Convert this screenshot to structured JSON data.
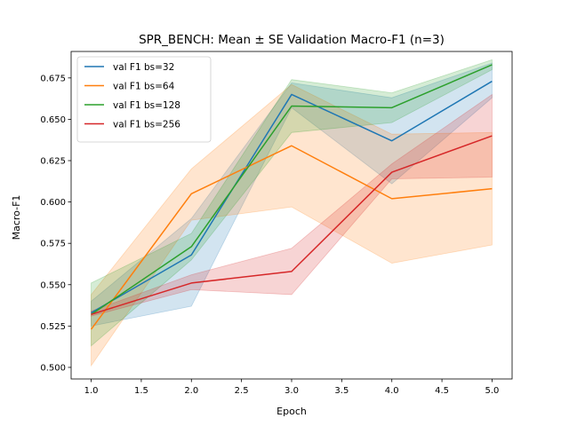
{
  "chart_data": {
    "type": "line",
    "title": "SPR_BENCH: Mean ± SE Validation Macro-F1 (n=3)",
    "xlabel": "Epoch",
    "ylabel": "Macro-F1",
    "x": [
      1,
      2,
      3,
      4,
      5
    ],
    "xlim": [
      0.8,
      5.2
    ],
    "ylim": [
      0.493,
      0.691
    ],
    "xticks": [
      1.0,
      1.5,
      2.0,
      2.5,
      3.0,
      3.5,
      4.0,
      4.5,
      5.0
    ],
    "xtick_labels": [
      "1.0",
      "1.5",
      "2.0",
      "2.5",
      "3.0",
      "3.5",
      "4.0",
      "4.5",
      "5.0"
    ],
    "yticks": [
      0.5,
      0.525,
      0.55,
      0.575,
      0.6,
      0.625,
      0.65,
      0.675
    ],
    "ytick_labels": [
      "0.500",
      "0.525",
      "0.550",
      "0.575",
      "0.600",
      "0.625",
      "0.650",
      "0.675"
    ],
    "grid": false,
    "legend_position": "upper-left",
    "series": [
      {
        "name": "val F1 bs=32",
        "color": "#1f77b4",
        "values": [
          0.533,
          0.568,
          0.665,
          0.637,
          0.673
        ],
        "lower": [
          0.525,
          0.537,
          0.657,
          0.611,
          0.663
        ],
        "upper": [
          0.54,
          0.59,
          0.672,
          0.663,
          0.684
        ]
      },
      {
        "name": "val F1 bs=64",
        "color": "#ff7f0e",
        "values": [
          0.523,
          0.605,
          0.634,
          0.602,
          0.608
        ],
        "lower": [
          0.501,
          0.589,
          0.597,
          0.563,
          0.574
        ],
        "upper": [
          0.544,
          0.62,
          0.671,
          0.641,
          0.642
        ]
      },
      {
        "name": "val F1 bs=128",
        "color": "#2ca02c",
        "values": [
          0.532,
          0.573,
          0.658,
          0.657,
          0.683
        ],
        "lower": [
          0.513,
          0.565,
          0.642,
          0.648,
          0.68
        ],
        "upper": [
          0.551,
          0.581,
          0.674,
          0.666,
          0.686
        ]
      },
      {
        "name": "val F1 bs=256",
        "color": "#d62728",
        "values": [
          0.532,
          0.551,
          0.558,
          0.618,
          0.64
        ],
        "lower": [
          0.531,
          0.547,
          0.544,
          0.614,
          0.615
        ],
        "upper": [
          0.534,
          0.556,
          0.572,
          0.623,
          0.665
        ]
      }
    ]
  }
}
